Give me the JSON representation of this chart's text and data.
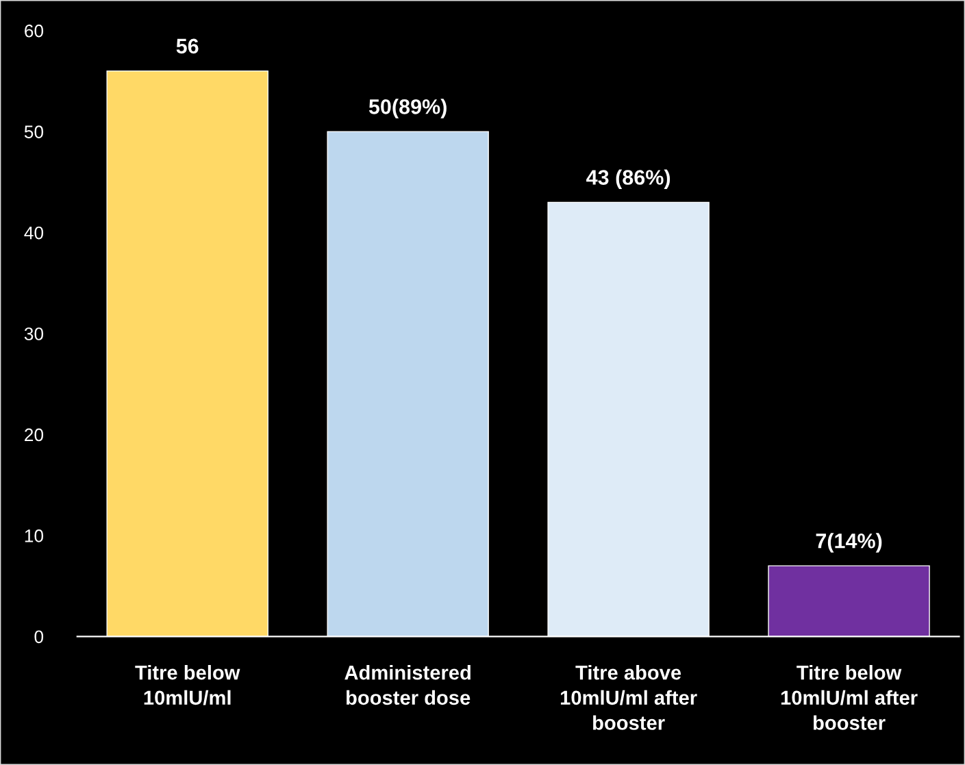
{
  "chart_data": {
    "type": "bar",
    "categories": [
      "Titre below\n10mlU/ml",
      "Administered\nbooster dose",
      "Titre above\n10mlU/ml after\nbooster",
      "Titre below\n10mlU/ml after\nbooster"
    ],
    "values": [
      56,
      50,
      43,
      7
    ],
    "colors": [
      "#ffd966",
      "#bdd7ee",
      "#deebf7",
      "#7030a0"
    ],
    "value_labels": [
      "56",
      "50(89%)",
      "43 (86%)",
      "7(14%)"
    ],
    "ylim": [
      0,
      60
    ],
    "yticks": [
      0,
      10,
      20,
      30,
      40,
      50,
      60
    ],
    "grid": false,
    "legend": false
  }
}
